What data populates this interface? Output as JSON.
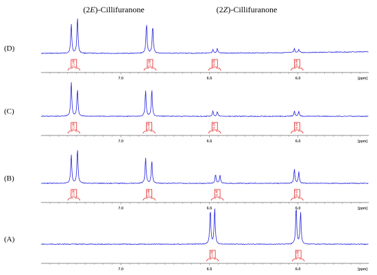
{
  "header": {
    "left_label": {
      "pre": "(2",
      "iso": "E",
      "post": ")-Cillifuranone"
    },
    "right_label": {
      "pre": "(2",
      "iso": "Z",
      "post": ")-Cillifuranone"
    }
  },
  "chart_data": [
    {
      "type": "line",
      "panel_label": "(D)",
      "xlabel": "[ppm]",
      "xlim": [
        7.45,
        5.6
      ],
      "xticks": [
        "7.0",
        "6.5",
        "6.0"
      ],
      "peaks": [
        {
          "ppm": 7.28,
          "height": 0.78
        },
        {
          "ppm": 7.245,
          "height": 0.96
        },
        {
          "ppm": 6.855,
          "height": 0.8
        },
        {
          "ppm": 6.82,
          "height": 0.73
        },
        {
          "ppm": 6.48,
          "height": 0.1
        },
        {
          "ppm": 6.455,
          "height": 0.12
        },
        {
          "ppm": 6.02,
          "height": 0.1
        },
        {
          "ppm": 5.995,
          "height": 0.08
        }
      ],
      "integrals": [
        {
          "ppm": 7.265,
          "label": "1.00"
        },
        {
          "ppm": 6.835,
          "label": "1.00"
        },
        {
          "ppm": 6.47,
          "label": "0.09"
        },
        {
          "ppm": 6.005,
          "label": "0.09"
        }
      ],
      "baseline_drift": 0.2,
      "colors": {
        "spectrum": "#2222dd",
        "integral": "#dd0000"
      }
    },
    {
      "type": "line",
      "panel_label": "(C)",
      "xlabel": "[ppm]",
      "xlim": [
        7.45,
        5.6
      ],
      "xticks": [
        "7.0",
        "6.5",
        "6.0"
      ],
      "peaks": [
        {
          "ppm": 7.28,
          "height": 0.92
        },
        {
          "ppm": 7.245,
          "height": 0.72
        },
        {
          "ppm": 6.86,
          "height": 0.68
        },
        {
          "ppm": 6.825,
          "height": 0.7
        },
        {
          "ppm": 6.48,
          "height": 0.14
        },
        {
          "ppm": 6.455,
          "height": 0.12
        },
        {
          "ppm": 6.02,
          "height": 0.14
        },
        {
          "ppm": 5.995,
          "height": 0.13
        }
      ],
      "integrals": [
        {
          "ppm": 7.265,
          "label": "1.00"
        },
        {
          "ppm": 6.84,
          "label": "1.00"
        },
        {
          "ppm": 6.47,
          "label": "0.18"
        },
        {
          "ppm": 6.005,
          "label": "0.18"
        }
      ],
      "baseline_drift": 0.0,
      "colors": {
        "spectrum": "#2222dd",
        "integral": "#dd0000"
      }
    },
    {
      "type": "line",
      "panel_label": "(B)",
      "xlabel": "[ppm]",
      "xlim": [
        7.45,
        5.6
      ],
      "xticks": [
        "7.0",
        "6.5",
        "6.0"
      ],
      "peaks": [
        {
          "ppm": 7.28,
          "height": 0.76
        },
        {
          "ppm": 7.245,
          "height": 0.92
        },
        {
          "ppm": 6.86,
          "height": 0.68
        },
        {
          "ppm": 6.825,
          "height": 0.6
        },
        {
          "ppm": 6.465,
          "height": 0.24
        },
        {
          "ppm": 6.44,
          "height": 0.22
        },
        {
          "ppm": 6.02,
          "height": 0.38
        },
        {
          "ppm": 5.995,
          "height": 0.3
        }
      ],
      "integrals": [
        {
          "ppm": 7.265,
          "label": "1.00"
        },
        {
          "ppm": 6.84,
          "label": "1.00"
        },
        {
          "ppm": 6.455,
          "label": "0.46"
        },
        {
          "ppm": 6.005,
          "label": "0.47"
        }
      ],
      "baseline_drift": 0.0,
      "colors": {
        "spectrum": "#2222dd",
        "integral": "#dd0000"
      }
    },
    {
      "type": "line",
      "panel_label": "(A)",
      "xlabel": "[ppm]",
      "xlim": [
        7.45,
        5.6
      ],
      "xticks": [
        "7.0",
        "6.5",
        "6.0"
      ],
      "peaks": [
        {
          "ppm": 6.495,
          "height": 0.92
        },
        {
          "ppm": 6.47,
          "height": 0.95
        },
        {
          "ppm": 6.01,
          "height": 1.0
        },
        {
          "ppm": 5.985,
          "height": 0.85
        }
      ],
      "integrals": [
        {
          "ppm": 6.482,
          "label": "1.00"
        },
        {
          "ppm": 5.998,
          "label": "1.00"
        }
      ],
      "baseline_drift": 0.0,
      "colors": {
        "spectrum": "#2222dd",
        "integral": "#dd0000"
      }
    }
  ]
}
